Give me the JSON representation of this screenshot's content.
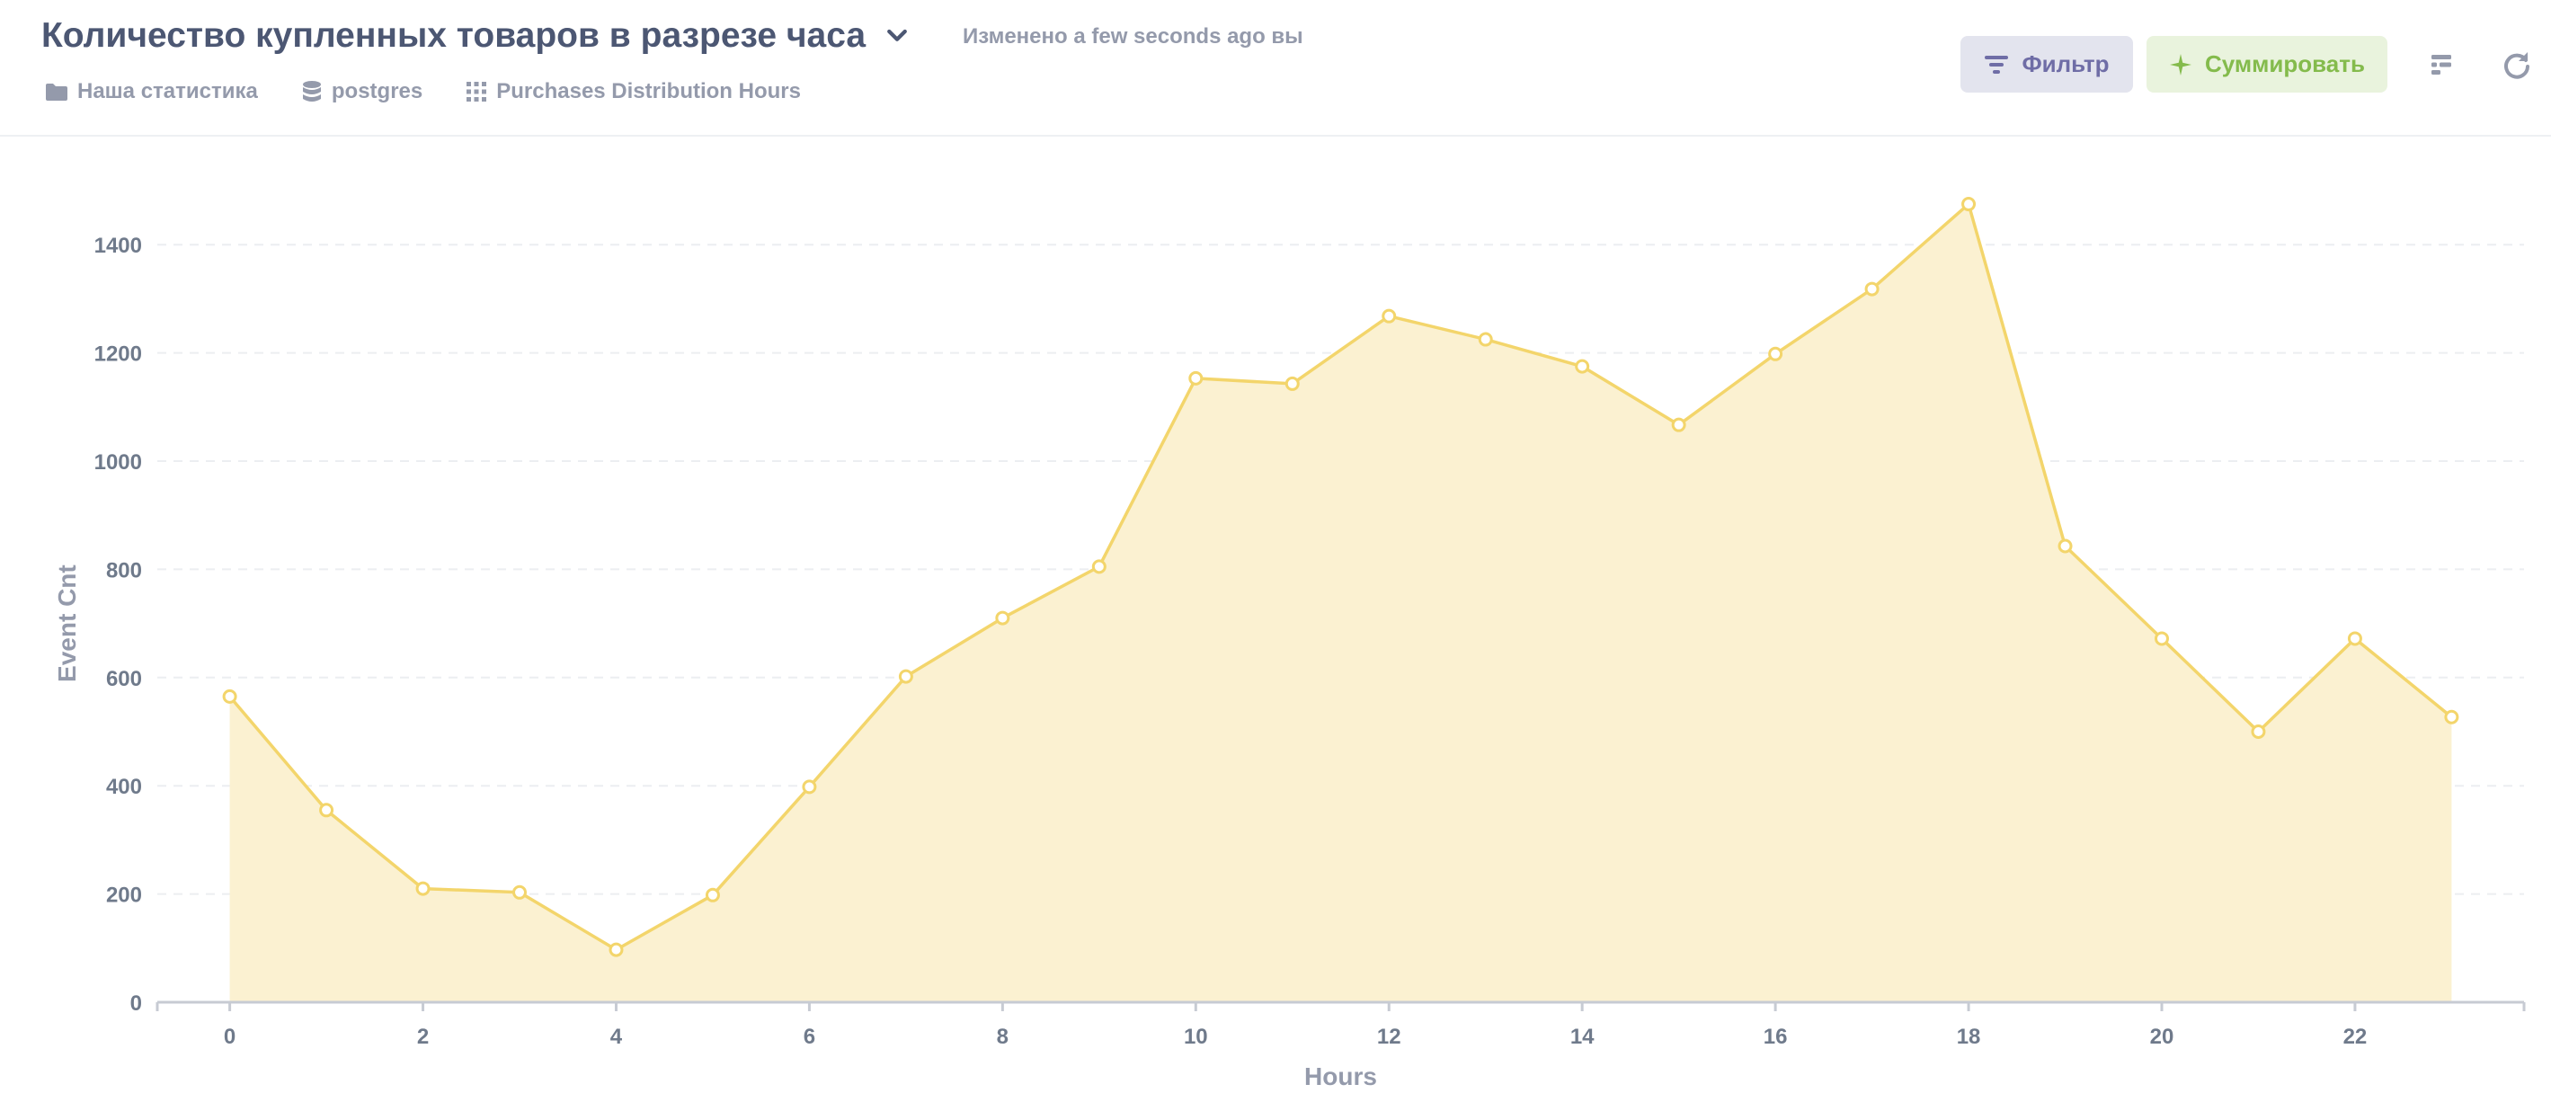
{
  "header": {
    "title": "Количество купленных товаров в разрезе часа",
    "edited": "Изменено a few seconds ago вы",
    "breadcrumbs": [
      {
        "label": "Наша статистика",
        "icon": "folder-icon"
      },
      {
        "label": "postgres",
        "icon": "database-icon"
      },
      {
        "label": "Purchases Distribution Hours",
        "icon": "grid-icon"
      }
    ],
    "filter_label": "Фильтр",
    "summarize_label": "Суммировать"
  },
  "colors": {
    "line": "#f3d56b",
    "area": "#fbf1d1",
    "filter_bg": "#e3e4ee",
    "filter_text": "#6f6da6",
    "summarize_bg": "#e9f3dd",
    "summarize_text": "#84bb4c"
  },
  "chart_data": {
    "type": "area",
    "xlabel": "Hours",
    "ylabel": "Event Cnt",
    "x": [
      0,
      1,
      2,
      3,
      4,
      5,
      6,
      7,
      8,
      9,
      10,
      11,
      12,
      13,
      14,
      15,
      16,
      17,
      18,
      19,
      20,
      21,
      22,
      23
    ],
    "series": [
      {
        "values": [
          565,
          355,
          210,
          203,
          97,
          198,
          398,
          602,
          710,
          805,
          1153,
          1143,
          1268,
          1225,
          1175,
          1067,
          1198,
          1318,
          1475,
          843,
          672,
          500,
          672,
          527
        ]
      }
    ],
    "x_ticks": [
      0,
      2,
      4,
      6,
      8,
      10,
      12,
      14,
      16,
      18,
      20,
      22
    ],
    "y_ticks": [
      0,
      200,
      400,
      600,
      800,
      1000,
      1200,
      1400
    ],
    "xlim": [
      -0.75,
      23.75
    ],
    "ylim": [
      0,
      1500
    ],
    "grid": true,
    "markers": true
  }
}
